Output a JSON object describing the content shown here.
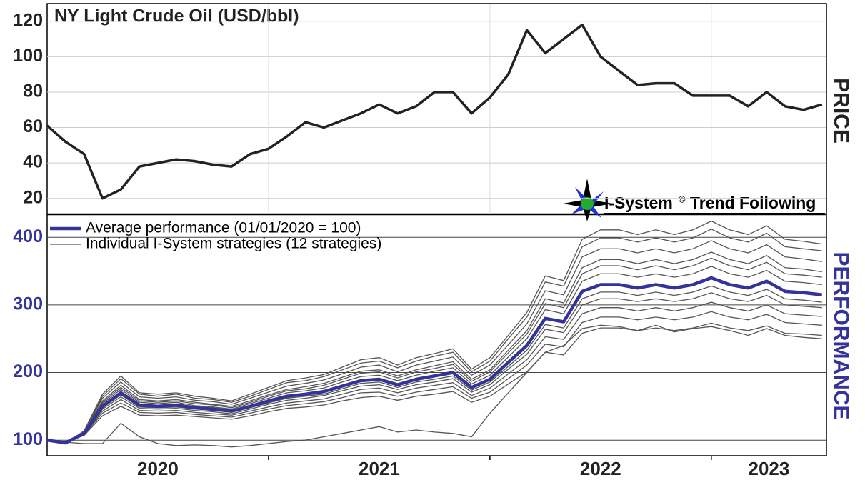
{
  "chart_data": [
    {
      "type": "line",
      "title": "NY Light Crude Oil (USD/bbl)",
      "axis_label": "PRICE",
      "xlim": [
        2020,
        2023.52
      ],
      "xticks": [
        2021,
        2022,
        2023
      ],
      "ylim": [
        11,
        130
      ],
      "yticks": [
        20,
        40,
        60,
        80,
        100,
        120
      ],
      "grid": true,
      "x": [
        2020,
        2020.083,
        2020.167,
        2020.25,
        2020.333,
        2020.417,
        2020.5,
        2020.583,
        2020.667,
        2020.75,
        2020.833,
        2020.917,
        2021,
        2021.083,
        2021.167,
        2021.25,
        2021.333,
        2021.417,
        2021.5,
        2021.583,
        2021.667,
        2021.75,
        2021.833,
        2021.917,
        2022,
        2022.083,
        2022.167,
        2022.25,
        2022.333,
        2022.417,
        2022.5,
        2022.583,
        2022.667,
        2022.75,
        2022.833,
        2022.917,
        2023,
        2023.083,
        2023.167,
        2023.25,
        2023.333,
        2023.417,
        2023.5
      ],
      "series": [
        {
          "color": "#222222",
          "values": [
            61,
            52,
            45,
            20,
            25,
            38,
            40,
            42,
            41,
            39,
            38,
            45,
            48,
            55,
            63,
            60,
            64,
            68,
            73,
            68,
            72,
            80,
            80,
            68,
            77,
            90,
            115,
            102,
            110,
            118,
            100,
            92,
            84,
            85,
            85,
            78,
            78,
            78,
            72,
            80,
            72,
            70,
            73
          ]
        }
      ]
    },
    {
      "type": "line",
      "axis_label": "PERFORMANCE",
      "xlim": [
        2020,
        2023.52
      ],
      "xticks": [
        2021,
        2022,
        2023
      ],
      "x_labels": [
        {
          "value": 2020.5,
          "label": "2020"
        },
        {
          "value": 2021.5,
          "label": "2021"
        },
        {
          "value": 2022.5,
          "label": "2022"
        },
        {
          "value": 2023.26,
          "label": "2023"
        }
      ],
      "ylim": [
        77,
        434
      ],
      "yticks": [
        100,
        200,
        300,
        400
      ],
      "grid": true,
      "x": [
        2020,
        2020.083,
        2020.167,
        2020.25,
        2020.333,
        2020.417,
        2020.5,
        2020.583,
        2020.667,
        2020.75,
        2020.833,
        2020.917,
        2021,
        2021.083,
        2021.167,
        2021.25,
        2021.333,
        2021.417,
        2021.5,
        2021.583,
        2021.667,
        2021.75,
        2021.833,
        2021.917,
        2022,
        2022.083,
        2022.167,
        2022.25,
        2022.333,
        2022.417,
        2022.5,
        2022.583,
        2022.667,
        2022.75,
        2022.833,
        2022.917,
        2023,
        2023.083,
        2023.167,
        2023.25,
        2023.333,
        2023.417,
        2023.5
      ],
      "legend": [
        "Average performance (01/01/2020 = 100)",
        "Individual I-System strategies (12 strategies)"
      ],
      "avg_color": "#33339a",
      "strategy_color": "#555555",
      "average": [
        100,
        96,
        110,
        150,
        170,
        152,
        150,
        152,
        148,
        146,
        143,
        150,
        158,
        165,
        168,
        172,
        180,
        188,
        190,
        182,
        190,
        195,
        200,
        178,
        190,
        215,
        240,
        280,
        275,
        320,
        330,
        330,
        325,
        330,
        325,
        330,
        340,
        330,
        325,
        335,
        320,
        318,
        315
      ],
      "strategies": [
        [
          100,
          95,
          114,
          168,
          195,
          170,
          168,
          170,
          165,
          162,
          158,
          168,
          178,
          188,
          192,
          197,
          208,
          219,
          222,
          211,
          222,
          228,
          235,
          205,
          222,
          255,
          289,
          343,
          336,
          397,
          411,
          411,
          404,
          411,
          404,
          411,
          424,
          411,
          404,
          417,
          397,
          394,
          390
        ],
        [
          100,
          95,
          113,
          165,
          191,
          168,
          165,
          168,
          162,
          160,
          156,
          165,
          175,
          185,
          188,
          194,
          204,
          214,
          217,
          207,
          217,
          224,
          230,
          201,
          217,
          250,
          282,
          334,
          328,
          386,
          399,
          399,
          393,
          399,
          393,
          399,
          412,
          399,
          393,
          406,
          386,
          383,
          380
        ],
        [
          100,
          95,
          112,
          162,
          186,
          164,
          162,
          164,
          159,
          157,
          153,
          162,
          171,
          180,
          184,
          189,
          198,
          208,
          211,
          201,
          211,
          217,
          223,
          196,
          211,
          241,
          272,
          321,
          315,
          371,
          383,
          383,
          377,
          383,
          377,
          383,
          395,
          383,
          377,
          389,
          371,
          368,
          364
        ],
        [
          100,
          95,
          112,
          158,
          181,
          160,
          158,
          160,
          156,
          153,
          150,
          158,
          167,
          175,
          179,
          184,
          193,
          202,
          204,
          195,
          204,
          210,
          216,
          190,
          204,
          233,
          262,
          309,
          303,
          355,
          367,
          367,
          361,
          367,
          361,
          367,
          378,
          367,
          361,
          373,
          355,
          353,
          349
        ],
        [
          100,
          96,
          111,
          156,
          178,
          158,
          156,
          158,
          154,
          152,
          148,
          156,
          165,
          173,
          176,
          181,
          190,
          199,
          201,
          192,
          201,
          206,
          212,
          187,
          201,
          229,
          257,
          302,
          296,
          346,
          358,
          358,
          352,
          358,
          352,
          358,
          369,
          358,
          352,
          363,
          346,
          344,
          341
        ],
        [
          100,
          96,
          111,
          154,
          175,
          156,
          154,
          156,
          151,
          149,
          146,
          154,
          162,
          170,
          173,
          177,
          186,
          194,
          196,
          188,
          196,
          202,
          207,
          183,
          196,
          223,
          250,
          293,
          287,
          335,
          346,
          346,
          341,
          346,
          341,
          346,
          357,
          346,
          341,
          351,
          335,
          333,
          330
        ],
        [
          100,
          96,
          110,
          148,
          167,
          149,
          148,
          149,
          146,
          144,
          141,
          148,
          155,
          162,
          165,
          168,
          176,
          184,
          186,
          178,
          186,
          190,
          195,
          174,
          186,
          209,
          233,
          271,
          266,
          309,
          319,
          319,
          314,
          319,
          314,
          319,
          328,
          319,
          314,
          323,
          309,
          307,
          304
        ],
        [
          100,
          96,
          109,
          146,
          164,
          147,
          146,
          147,
          144,
          142,
          139,
          146,
          153,
          159,
          162,
          166,
          173,
          180,
          182,
          175,
          182,
          186,
          191,
          171,
          182,
          205,
          227,
          264,
          259,
          300,
          309,
          309,
          305,
          309,
          305,
          309,
          318,
          309,
          305,
          314,
          300,
          298,
          296
        ],
        [
          100,
          97,
          109,
          143,
          160,
          144,
          143,
          144,
          141,
          139,
          137,
          143,
          149,
          155,
          158,
          161,
          168,
          175,
          177,
          170,
          177,
          181,
          185,
          166,
          177,
          198,
          219,
          253,
          249,
          287,
          296,
          296,
          291,
          296,
          291,
          296,
          304,
          296,
          291,
          300,
          287,
          285,
          283
        ],
        [
          100,
          97,
          108,
          140,
          155,
          141,
          140,
          141,
          138,
          136,
          134,
          140,
          146,
          151,
          154,
          157,
          163,
          170,
          171,
          165,
          171,
          175,
          179,
          162,
          171,
          191,
          211,
          242,
          238,
          274,
          282,
          282,
          278,
          282,
          278,
          282,
          290,
          282,
          278,
          286,
          274,
          272,
          270
        ],
        [
          100,
          97,
          107,
          136,
          150,
          137,
          136,
          137,
          135,
          133,
          131,
          136,
          142,
          147,
          149,
          152,
          158,
          163,
          165,
          159,
          165,
          168,
          172,
          156,
          165,
          183,
          201,
          230,
          226,
          258,
          266,
          266,
          262,
          266,
          262,
          266,
          273,
          266,
          262,
          269,
          258,
          257,
          255
        ],
        [
          100,
          97,
          95,
          95,
          125,
          105,
          95,
          92,
          93,
          92,
          90,
          92,
          95,
          98,
          100,
          105,
          110,
          115,
          120,
          112,
          115,
          112,
          110,
          105,
          140,
          170,
          200,
          230,
          240,
          265,
          270,
          268,
          262,
          270,
          260,
          265,
          268,
          262,
          255,
          265,
          255,
          252,
          250
        ]
      ]
    }
  ],
  "logo": {
    "name": "I-System",
    "mark": "©",
    "tagline": "Trend Following"
  }
}
